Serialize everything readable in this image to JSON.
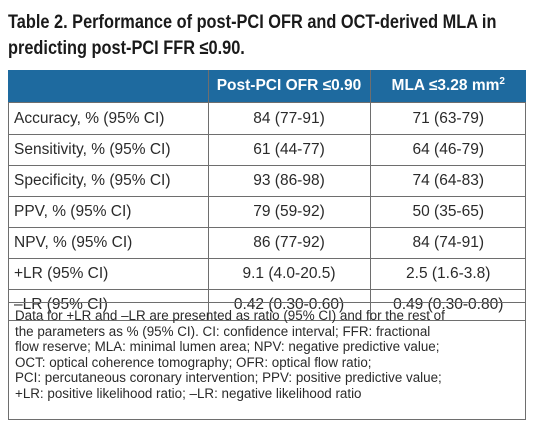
{
  "caption": {
    "line1": "Table 2. Performance of post-PCI OFR and OCT-derived MLA in",
    "line2": "predicting post-PCI FFR ≤0.90."
  },
  "table": {
    "headers": [
      "",
      "Post-PCI OFR ≤0.90",
      "MLA ≤3.28 mm"
    ],
    "header_superscript": "2",
    "rows": [
      {
        "label": "Accuracy, % (95% CI)",
        "ofr": "84 (77-91)",
        "mla": "71 (63-79)"
      },
      {
        "label": "Sensitivity, % (95% CI)",
        "ofr": "61 (44-77)",
        "mla": "64 (46-79)"
      },
      {
        "label": "Specificity, % (95% CI)",
        "ofr": "93 (86-98)",
        "mla": "74 (64-83)"
      },
      {
        "label": "PPV, % (95% CI)",
        "ofr": "79 (59-92)",
        "mla": "50 (35-65)"
      },
      {
        "label": "NPV, % (95% CI)",
        "ofr": "86 (77-92)",
        "mla": "84 (74-91)"
      },
      {
        "label": "+LR (95% CI)",
        "ofr": "9.1 (4.0-20.5)",
        "mla": "2.5 (1.6-3.8)"
      },
      {
        "label": "–LR (95% CI)",
        "ofr": "0.42 (0.30-0.60)",
        "mla": "0.49 (0.30-0.80)"
      }
    ]
  },
  "footnote": {
    "lines": [
      "Data for +LR and –LR are presented as ratio (95% CI) and for the rest of",
      "the parameters as % (95% CI). CI: confidence interval; FFR: fractional",
      "flow reserve; MLA: minimal lumen area; NPV: negative predictive value;",
      "OCT: optical coherence tomography; OFR: optical flow ratio;",
      "PCI: percutaneous coronary intervention; PPV: positive predictive value;",
      "+LR: positive likelihood ratio; –LR: negative likelihood ratio"
    ]
  },
  "colors": {
    "header_bg": "#1e6a9f",
    "header_text": "#ffffff",
    "border": "#6e6e6e"
  }
}
